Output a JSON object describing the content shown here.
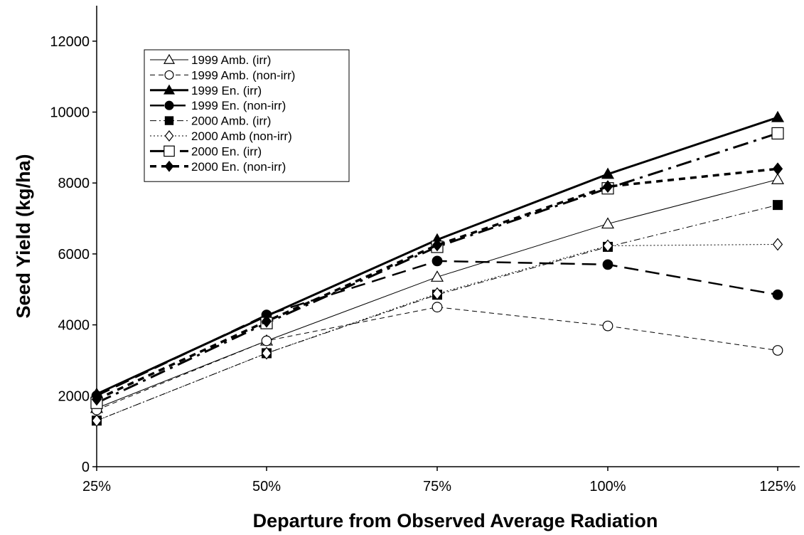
{
  "chart_data": {
    "type": "line",
    "title": "",
    "xlabel": "Departure from Observed Average Radiation",
    "ylabel": "Seed Yield (kg/ha)",
    "categories": [
      "25%",
      "50%",
      "75%",
      "100%",
      "125%"
    ],
    "ylim": [
      0,
      13000
    ],
    "yticks": [
      0,
      2000,
      4000,
      6000,
      8000,
      10000,
      12000
    ],
    "grid": false,
    "legend_position": "top-left",
    "series": [
      {
        "name": "1999 Amb. (irr)",
        "values": [
          1650,
          3550,
          5350,
          6850,
          8100
        ],
        "color": "#000000",
        "marker": "triangle-open",
        "dash": "solid",
        "width": 1
      },
      {
        "name": "1999 Amb. (non-irr)",
        "values": [
          1600,
          3550,
          4500,
          3970,
          3280
        ],
        "color": "#000000",
        "marker": "circle-open",
        "dash": "dashed-thin",
        "width": 1
      },
      {
        "name": "1999 En. (irr)",
        "values": [
          2050,
          4250,
          6400,
          8250,
          9850
        ],
        "color": "#000000",
        "marker": "triangle-filled",
        "dash": "solid",
        "width": 3
      },
      {
        "name": "1999 En. (non-irr)",
        "values": [
          2000,
          4280,
          5800,
          5700,
          4850
        ],
        "color": "#000000",
        "marker": "circle-filled",
        "dash": "long-dash",
        "width": 2.5
      },
      {
        "name": "2000 Amb. (irr)",
        "values": [
          1300,
          3200,
          4850,
          6200,
          7380
        ],
        "color": "#000000",
        "marker": "square-filled",
        "dash": "dash-dot",
        "width": 1
      },
      {
        "name": "2000 Amb (non-irr)",
        "values": [
          1300,
          3200,
          4880,
          6230,
          6270
        ],
        "color": "#000000",
        "marker": "diamond-open",
        "dash": "dotted",
        "width": 1
      },
      {
        "name": "2000 En. (irr)",
        "values": [
          1800,
          4050,
          6200,
          7850,
          9400
        ],
        "color": "#000000",
        "marker": "square-open",
        "dash": "dash-dot-thick",
        "width": 3
      },
      {
        "name": "2000 En. (non-irr)",
        "values": [
          1900,
          4100,
          6250,
          7900,
          8400
        ],
        "color": "#000000",
        "marker": "diamond-filled",
        "dash": "short-dash-thick",
        "width": 3.5
      }
    ]
  }
}
